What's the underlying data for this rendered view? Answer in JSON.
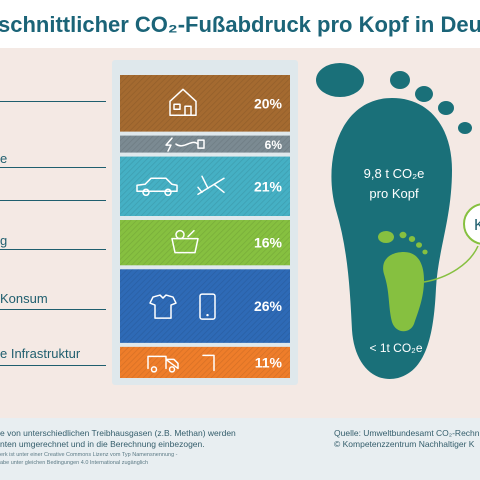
{
  "title": "schnittlicher CO₂-Fußabdruck pro Kopf in Deutsch",
  "category_labels": [
    "",
    "e",
    "",
    "g",
    " Konsum",
    "e Infrastruktur"
  ],
  "colors": {
    "housing": "#a46a30",
    "electricity": "#7b8a92",
    "mobility": "#45b0c4",
    "food": "#86c040",
    "consumption": "#2e6ab6",
    "infrastructure": "#ee7d2a",
    "foot_big": "#1a7079",
    "foot_small": "#86c040",
    "panel": "#dfe8ec"
  },
  "chart_data": {
    "type": "bar",
    "orientation": "horizontal",
    "unit": "%",
    "categories": [
      "",
      "",
      "",
      "",
      "",
      ""
    ],
    "values": [
      20,
      6,
      21,
      16,
      26,
      11
    ],
    "value_labels": [
      "20%",
      "6%",
      "21%",
      "16%",
      "26%",
      "11%"
    ],
    "icons": [
      [
        "house-icon"
      ],
      [
        "lightning-icon",
        "plug-icon"
      ],
      [
        "car-icon",
        "airplane-icon"
      ],
      [
        "food-bag-icon"
      ],
      [
        "shirt-icon",
        "smartphone-icon"
      ],
      [
        "truck-icon",
        "pipe-icon"
      ]
    ]
  },
  "footprint": {
    "big_value": "9,8 t CO₂e",
    "big_unit": "pro Kopf",
    "small_value": "< 1t CO₂e",
    "callout_letter": "K"
  },
  "footer": {
    "left_line1": "e von unterschiedlichen Treibhausgasen (z.B. Methan) werden",
    "left_line2": "nten umgerechnet und in die Berechnung einbezogen.",
    "left_small1": "erk ist unter einer Creative Commons Lizenz vom Typ Namensnennung -",
    "left_small2": "abe unter gleichen Bedingungen 4.0 International zugänglich",
    "right_line1": "Quelle: Umweltbundesamt CO₂-Rechn",
    "right_line2": "© Kompetenzzentrum Nachhaltiger K"
  }
}
